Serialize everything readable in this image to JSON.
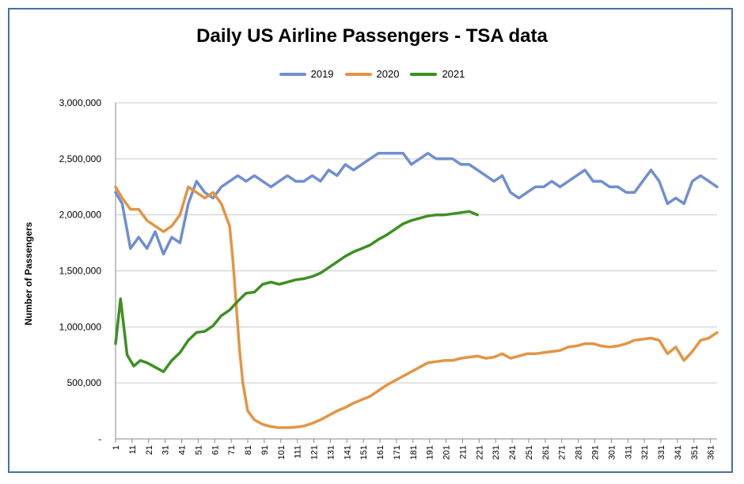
{
  "chart_data": {
    "type": "line",
    "title": "Daily US Airline Passengers - TSA data",
    "xlabel": "",
    "ylabel": "Number of Passengers",
    "xlim": [
      1,
      365
    ],
    "ylim": [
      0,
      3000000
    ],
    "x_ticks": [
      1,
      11,
      21,
      31,
      41,
      51,
      61,
      71,
      81,
      91,
      101,
      111,
      121,
      131,
      141,
      151,
      161,
      171,
      181,
      191,
      201,
      211,
      221,
      231,
      241,
      251,
      261,
      271,
      281,
      291,
      301,
      311,
      321,
      331,
      341,
      351,
      361
    ],
    "y_ticks": [
      {
        "value": 0,
        "label": "-"
      },
      {
        "value": 500000,
        "label": "500,000"
      },
      {
        "value": 1000000,
        "label": "1,000,000"
      },
      {
        "value": 1500000,
        "label": "1,500,000"
      },
      {
        "value": 2000000,
        "label": "2,000,000"
      },
      {
        "value": 2500000,
        "label": "2,500,000"
      },
      {
        "value": 3000000,
        "label": "3,000,000"
      }
    ],
    "grid": "horizontal",
    "legend_position": "top",
    "series": [
      {
        "name": "2019",
        "color": "#6f8fd0",
        "points": [
          [
            1,
            2200000
          ],
          [
            5,
            2100000
          ],
          [
            10,
            1700000
          ],
          [
            15,
            1800000
          ],
          [
            20,
            1700000
          ],
          [
            25,
            1850000
          ],
          [
            30,
            1650000
          ],
          [
            35,
            1800000
          ],
          [
            40,
            1750000
          ],
          [
            45,
            2100000
          ],
          [
            50,
            2300000
          ],
          [
            55,
            2200000
          ],
          [
            60,
            2150000
          ],
          [
            65,
            2250000
          ],
          [
            70,
            2300000
          ],
          [
            75,
            2350000
          ],
          [
            80,
            2300000
          ],
          [
            85,
            2350000
          ],
          [
            90,
            2300000
          ],
          [
            95,
            2250000
          ],
          [
            100,
            2300000
          ],
          [
            105,
            2350000
          ],
          [
            110,
            2300000
          ],
          [
            115,
            2300000
          ],
          [
            120,
            2350000
          ],
          [
            125,
            2300000
          ],
          [
            130,
            2400000
          ],
          [
            135,
            2350000
          ],
          [
            140,
            2450000
          ],
          [
            145,
            2400000
          ],
          [
            150,
            2450000
          ],
          [
            155,
            2500000
          ],
          [
            160,
            2550000
          ],
          [
            165,
            2550000
          ],
          [
            170,
            2550000
          ],
          [
            175,
            2550000
          ],
          [
            180,
            2450000
          ],
          [
            185,
            2500000
          ],
          [
            190,
            2550000
          ],
          [
            195,
            2500000
          ],
          [
            200,
            2500000
          ],
          [
            205,
            2500000
          ],
          [
            210,
            2450000
          ],
          [
            215,
            2450000
          ],
          [
            220,
            2400000
          ],
          [
            225,
            2350000
          ],
          [
            230,
            2300000
          ],
          [
            235,
            2350000
          ],
          [
            240,
            2200000
          ],
          [
            245,
            2150000
          ],
          [
            250,
            2200000
          ],
          [
            255,
            2250000
          ],
          [
            260,
            2250000
          ],
          [
            265,
            2300000
          ],
          [
            270,
            2250000
          ],
          [
            275,
            2300000
          ],
          [
            280,
            2350000
          ],
          [
            285,
            2400000
          ],
          [
            290,
            2300000
          ],
          [
            295,
            2300000
          ],
          [
            300,
            2250000
          ],
          [
            305,
            2250000
          ],
          [
            310,
            2200000
          ],
          [
            315,
            2200000
          ],
          [
            320,
            2300000
          ],
          [
            325,
            2400000
          ],
          [
            330,
            2300000
          ],
          [
            335,
            2100000
          ],
          [
            340,
            2150000
          ],
          [
            345,
            2100000
          ],
          [
            350,
            2300000
          ],
          [
            355,
            2350000
          ],
          [
            360,
            2300000
          ],
          [
            365,
            2250000
          ]
        ]
      },
      {
        "name": "2020",
        "color": "#e49444",
        "points": [
          [
            1,
            2250000
          ],
          [
            5,
            2150000
          ],
          [
            10,
            2050000
          ],
          [
            15,
            2050000
          ],
          [
            20,
            1950000
          ],
          [
            25,
            1900000
          ],
          [
            30,
            1850000
          ],
          [
            35,
            1900000
          ],
          [
            40,
            2000000
          ],
          [
            45,
            2250000
          ],
          [
            50,
            2200000
          ],
          [
            55,
            2150000
          ],
          [
            60,
            2200000
          ],
          [
            65,
            2100000
          ],
          [
            70,
            1900000
          ],
          [
            72,
            1600000
          ],
          [
            74,
            1200000
          ],
          [
            76,
            800000
          ],
          [
            78,
            500000
          ],
          [
            81,
            250000
          ],
          [
            85,
            170000
          ],
          [
            90,
            130000
          ],
          [
            95,
            110000
          ],
          [
            100,
            100000
          ],
          [
            105,
            100000
          ],
          [
            110,
            105000
          ],
          [
            115,
            115000
          ],
          [
            120,
            140000
          ],
          [
            125,
            170000
          ],
          [
            130,
            210000
          ],
          [
            135,
            250000
          ],
          [
            140,
            280000
          ],
          [
            145,
            320000
          ],
          [
            150,
            350000
          ],
          [
            155,
            380000
          ],
          [
            160,
            430000
          ],
          [
            165,
            480000
          ],
          [
            170,
            520000
          ],
          [
            175,
            560000
          ],
          [
            180,
            600000
          ],
          [
            185,
            640000
          ],
          [
            190,
            680000
          ],
          [
            195,
            690000
          ],
          [
            200,
            700000
          ],
          [
            205,
            700000
          ],
          [
            210,
            720000
          ],
          [
            215,
            730000
          ],
          [
            220,
            740000
          ],
          [
            225,
            720000
          ],
          [
            230,
            730000
          ],
          [
            235,
            760000
          ],
          [
            240,
            720000
          ],
          [
            245,
            740000
          ],
          [
            250,
            760000
          ],
          [
            255,
            760000
          ],
          [
            260,
            770000
          ],
          [
            265,
            780000
          ],
          [
            270,
            790000
          ],
          [
            275,
            820000
          ],
          [
            280,
            830000
          ],
          [
            285,
            850000
          ],
          [
            290,
            850000
          ],
          [
            295,
            830000
          ],
          [
            300,
            820000
          ],
          [
            305,
            830000
          ],
          [
            310,
            850000
          ],
          [
            315,
            880000
          ],
          [
            320,
            890000
          ],
          [
            325,
            900000
          ],
          [
            330,
            880000
          ],
          [
            335,
            760000
          ],
          [
            340,
            820000
          ],
          [
            345,
            700000
          ],
          [
            350,
            780000
          ],
          [
            355,
            880000
          ],
          [
            360,
            900000
          ],
          [
            365,
            950000
          ]
        ]
      },
      {
        "name": "2021",
        "color": "#3f8f22",
        "points": [
          [
            1,
            850000
          ],
          [
            4,
            1250000
          ],
          [
            8,
            750000
          ],
          [
            12,
            650000
          ],
          [
            16,
            700000
          ],
          [
            20,
            680000
          ],
          [
            25,
            640000
          ],
          [
            30,
            600000
          ],
          [
            35,
            700000
          ],
          [
            40,
            770000
          ],
          [
            45,
            880000
          ],
          [
            50,
            950000
          ],
          [
            55,
            960000
          ],
          [
            60,
            1010000
          ],
          [
            65,
            1100000
          ],
          [
            70,
            1150000
          ],
          [
            75,
            1230000
          ],
          [
            80,
            1300000
          ],
          [
            85,
            1310000
          ],
          [
            90,
            1380000
          ],
          [
            95,
            1400000
          ],
          [
            100,
            1380000
          ],
          [
            105,
            1400000
          ],
          [
            110,
            1420000
          ],
          [
            115,
            1430000
          ],
          [
            120,
            1450000
          ],
          [
            125,
            1480000
          ],
          [
            130,
            1530000
          ],
          [
            135,
            1580000
          ],
          [
            140,
            1630000
          ],
          [
            145,
            1670000
          ],
          [
            150,
            1700000
          ],
          [
            155,
            1730000
          ],
          [
            160,
            1780000
          ],
          [
            165,
            1820000
          ],
          [
            170,
            1870000
          ],
          [
            175,
            1920000
          ],
          [
            180,
            1950000
          ],
          [
            185,
            1970000
          ],
          [
            190,
            1990000
          ],
          [
            195,
            2000000
          ],
          [
            200,
            2000000
          ],
          [
            205,
            2010000
          ],
          [
            210,
            2020000
          ],
          [
            215,
            2030000
          ],
          [
            220,
            2000000
          ]
        ]
      }
    ]
  }
}
